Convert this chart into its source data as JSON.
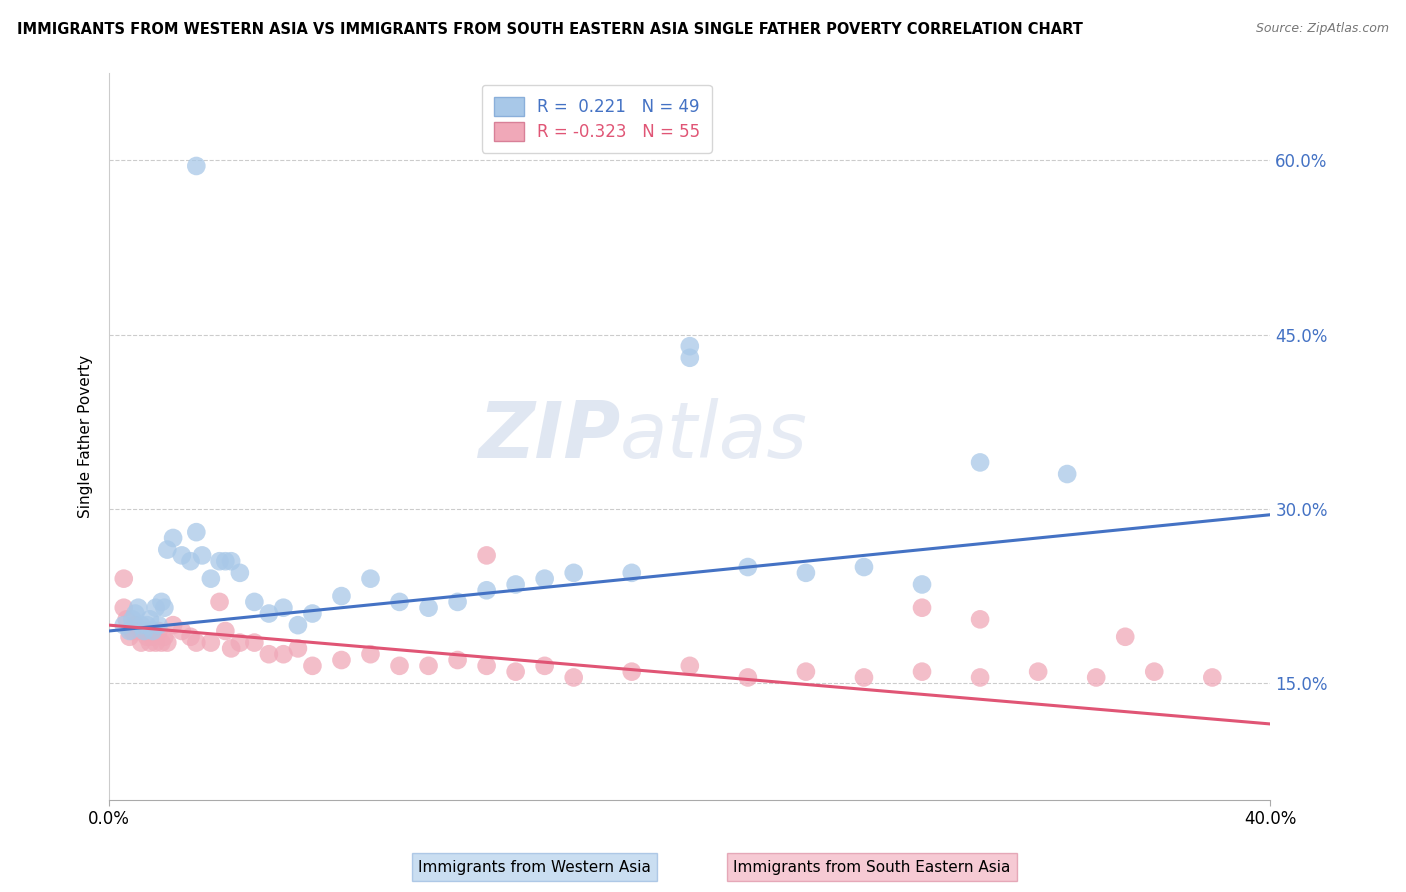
{
  "title": "IMMIGRANTS FROM WESTERN ASIA VS IMMIGRANTS FROM SOUTH EASTERN ASIA SINGLE FATHER POVERTY CORRELATION CHART",
  "source": "Source: ZipAtlas.com",
  "ylabel": "Single Father Poverty",
  "yticks": [
    0.15,
    0.3,
    0.45,
    0.6
  ],
  "ytick_labels": [
    "15.0%",
    "30.0%",
    "45.0%",
    "60.0%"
  ],
  "xlim": [
    0.0,
    0.4
  ],
  "ylim": [
    0.05,
    0.675
  ],
  "legend_R1": "0.221",
  "legend_N1": "49",
  "legend_R2": "-0.323",
  "legend_N2": "55",
  "blue_color": "#a8c8e8",
  "pink_color": "#f0a8b8",
  "blue_line_color": "#4472c4",
  "pink_line_color": "#e05575",
  "watermark_zip": "ZIP",
  "watermark_atlas": "atlas",
  "blue_scatter": [
    [
      0.005,
      0.2
    ],
    [
      0.007,
      0.195
    ],
    [
      0.008,
      0.205
    ],
    [
      0.009,
      0.21
    ],
    [
      0.01,
      0.215
    ],
    [
      0.011,
      0.2
    ],
    [
      0.012,
      0.195
    ],
    [
      0.013,
      0.2
    ],
    [
      0.014,
      0.205
    ],
    [
      0.015,
      0.195
    ],
    [
      0.016,
      0.215
    ],
    [
      0.017,
      0.2
    ],
    [
      0.018,
      0.22
    ],
    [
      0.019,
      0.215
    ],
    [
      0.02,
      0.265
    ],
    [
      0.022,
      0.275
    ],
    [
      0.025,
      0.26
    ],
    [
      0.028,
      0.255
    ],
    [
      0.03,
      0.28
    ],
    [
      0.032,
      0.26
    ],
    [
      0.035,
      0.24
    ],
    [
      0.038,
      0.255
    ],
    [
      0.04,
      0.255
    ],
    [
      0.042,
      0.255
    ],
    [
      0.045,
      0.245
    ],
    [
      0.05,
      0.22
    ],
    [
      0.055,
      0.21
    ],
    [
      0.06,
      0.215
    ],
    [
      0.065,
      0.2
    ],
    [
      0.07,
      0.21
    ],
    [
      0.08,
      0.225
    ],
    [
      0.09,
      0.24
    ],
    [
      0.1,
      0.22
    ],
    [
      0.11,
      0.215
    ],
    [
      0.12,
      0.22
    ],
    [
      0.13,
      0.23
    ],
    [
      0.14,
      0.235
    ],
    [
      0.15,
      0.24
    ],
    [
      0.16,
      0.245
    ],
    [
      0.18,
      0.245
    ],
    [
      0.2,
      0.43
    ],
    [
      0.22,
      0.25
    ],
    [
      0.24,
      0.245
    ],
    [
      0.26,
      0.25
    ],
    [
      0.28,
      0.235
    ],
    [
      0.3,
      0.34
    ],
    [
      0.33,
      0.33
    ],
    [
      0.03,
      0.595
    ],
    [
      0.2,
      0.44
    ]
  ],
  "pink_scatter": [
    [
      0.005,
      0.215
    ],
    [
      0.006,
      0.205
    ],
    [
      0.007,
      0.19
    ],
    [
      0.008,
      0.195
    ],
    [
      0.009,
      0.2
    ],
    [
      0.01,
      0.195
    ],
    [
      0.011,
      0.185
    ],
    [
      0.012,
      0.195
    ],
    [
      0.013,
      0.19
    ],
    [
      0.014,
      0.185
    ],
    [
      0.015,
      0.19
    ],
    [
      0.016,
      0.185
    ],
    [
      0.017,
      0.195
    ],
    [
      0.018,
      0.185
    ],
    [
      0.019,
      0.19
    ],
    [
      0.02,
      0.185
    ],
    [
      0.022,
      0.2
    ],
    [
      0.025,
      0.195
    ],
    [
      0.028,
      0.19
    ],
    [
      0.03,
      0.185
    ],
    [
      0.035,
      0.185
    ],
    [
      0.038,
      0.22
    ],
    [
      0.04,
      0.195
    ],
    [
      0.042,
      0.18
    ],
    [
      0.045,
      0.185
    ],
    [
      0.05,
      0.185
    ],
    [
      0.055,
      0.175
    ],
    [
      0.06,
      0.175
    ],
    [
      0.065,
      0.18
    ],
    [
      0.07,
      0.165
    ],
    [
      0.08,
      0.17
    ],
    [
      0.09,
      0.175
    ],
    [
      0.1,
      0.165
    ],
    [
      0.11,
      0.165
    ],
    [
      0.12,
      0.17
    ],
    [
      0.13,
      0.165
    ],
    [
      0.14,
      0.16
    ],
    [
      0.15,
      0.165
    ],
    [
      0.16,
      0.155
    ],
    [
      0.18,
      0.16
    ],
    [
      0.2,
      0.165
    ],
    [
      0.22,
      0.155
    ],
    [
      0.24,
      0.16
    ],
    [
      0.26,
      0.155
    ],
    [
      0.28,
      0.16
    ],
    [
      0.3,
      0.155
    ],
    [
      0.32,
      0.16
    ],
    [
      0.34,
      0.155
    ],
    [
      0.36,
      0.16
    ],
    [
      0.38,
      0.155
    ],
    [
      0.005,
      0.24
    ],
    [
      0.13,
      0.26
    ],
    [
      0.28,
      0.215
    ],
    [
      0.3,
      0.205
    ],
    [
      0.35,
      0.19
    ]
  ],
  "dot_size": 180
}
